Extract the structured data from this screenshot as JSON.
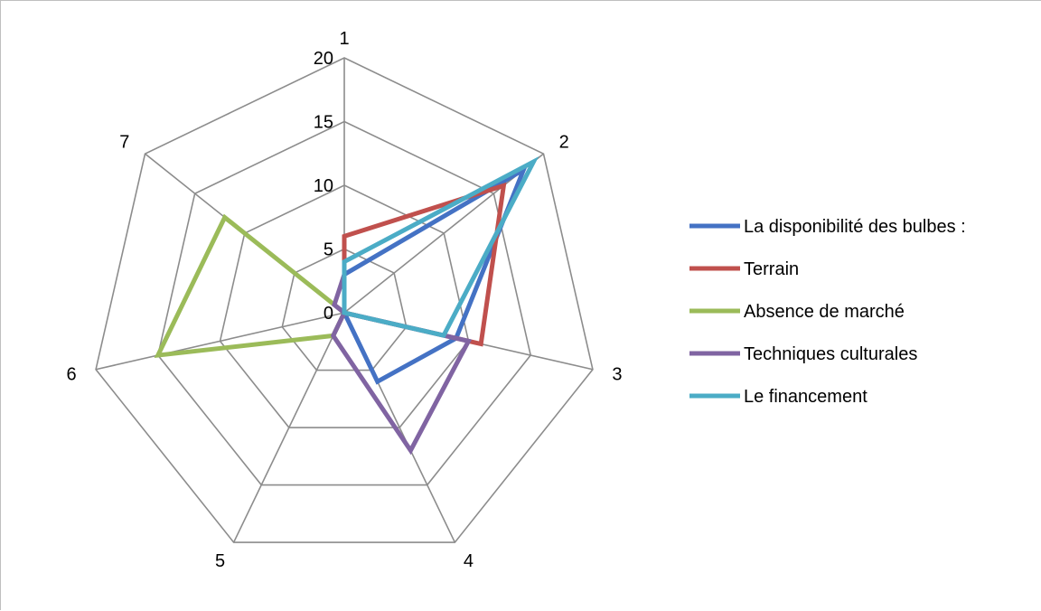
{
  "chart_data": {
    "type": "radar",
    "categories": [
      "1",
      "2",
      "3",
      "4",
      "5",
      "6",
      "7"
    ],
    "r_ticks": [
      0,
      5,
      10,
      15,
      20
    ],
    "r_range": [
      0,
      20
    ],
    "grid": true,
    "legend_position": "right",
    "series": [
      {
        "name": "La disponibilité des bulbes :",
        "color": "#4472c4",
        "values": [
          3,
          18,
          9,
          6,
          0,
          0,
          0
        ]
      },
      {
        "name": "Terrain",
        "color": "#c0504d",
        "values": [
          6,
          16,
          11,
          0,
          0,
          0,
          0
        ]
      },
      {
        "name": "Absence de marché",
        "color": "#9bbb59",
        "values": [
          0,
          0,
          1,
          0,
          2,
          15,
          12
        ]
      },
      {
        "name": "Techniques culturales",
        "color": "#8064a2",
        "values": [
          3,
          0,
          10,
          12,
          2,
          0,
          1
        ]
      },
      {
        "name": "Le financement",
        "color": "#4bacc6",
        "values": [
          4,
          19,
          8,
          0,
          0,
          0,
          0
        ]
      }
    ]
  }
}
